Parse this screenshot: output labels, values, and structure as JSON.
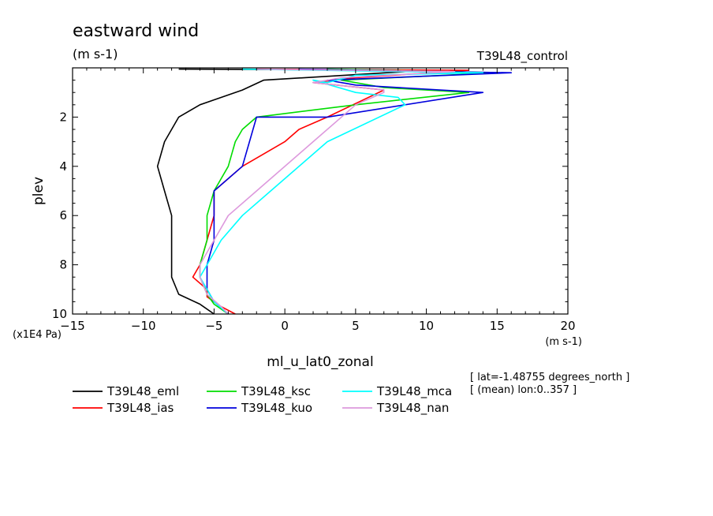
{
  "chart_data": {
    "type": "line",
    "title": "eastward wind",
    "units_top": "(m s-1)",
    "run_label": "T39L48_control",
    "xlabel": "ml_u_lat0_zonal",
    "x_units": "(m s-1)",
    "ylabel": "plev",
    "y_units": "(x1E4 Pa)",
    "xlim": [
      -15,
      20
    ],
    "ylim": [
      0,
      10
    ],
    "y_inverted": true,
    "x_ticks": [
      "-15",
      "-10",
      "-5",
      "0",
      "5",
      "10",
      "15",
      "20"
    ],
    "y_ticks": [
      "2",
      "4",
      "6",
      "8",
      "10"
    ],
    "info_lines": [
      "[ lat=-1.48755 degrees_north ]",
      "[ (mean) lon:0..357 ]"
    ],
    "series": [
      {
        "name": "T39L48_eml",
        "color": "#000000",
        "points": [
          [
            -7.5,
            0.05
          ],
          [
            10,
            0.1
          ],
          [
            -1.5,
            0.5
          ],
          [
            -3,
            0.9
          ],
          [
            -6,
            1.5
          ],
          [
            -7.5,
            2.0
          ],
          [
            -8.5,
            3.0
          ],
          [
            -9,
            4.0
          ],
          [
            -8.5,
            5.0
          ],
          [
            -8,
            6.0
          ],
          [
            -8,
            7.0
          ],
          [
            -8,
            8.0
          ],
          [
            -8,
            8.5
          ],
          [
            -7.5,
            9.2
          ],
          [
            -6,
            9.6
          ],
          [
            -5,
            10.0
          ]
        ]
      },
      {
        "name": "T39L48_ias",
        "color": "#ff0000",
        "points": [
          [
            -2,
            0.05
          ],
          [
            13,
            0.1
          ],
          [
            5,
            0.4
          ],
          [
            2,
            0.6
          ],
          [
            7,
            0.9
          ],
          [
            3,
            2.0
          ],
          [
            1,
            2.5
          ],
          [
            0,
            3.0
          ],
          [
            -3,
            4.0
          ],
          [
            -5,
            5.0
          ],
          [
            -5,
            6.0
          ],
          [
            -5.5,
            7.0
          ],
          [
            -6,
            8.0
          ],
          [
            -6.5,
            8.5
          ],
          [
            -5.5,
            9.0
          ],
          [
            -5.5,
            9.3
          ],
          [
            -4.5,
            9.7
          ],
          [
            -3.5,
            10.0
          ]
        ]
      },
      {
        "name": "T39L48_ksc",
        "color": "#00dd00",
        "points": [
          [
            3,
            0.05
          ],
          [
            15,
            0.2
          ],
          [
            4,
            0.5
          ],
          [
            7,
            0.8
          ],
          [
            13,
            1.0
          ],
          [
            5,
            1.5
          ],
          [
            -2,
            2.0
          ],
          [
            -3,
            2.5
          ],
          [
            -3.5,
            3.0
          ],
          [
            -4,
            4.0
          ],
          [
            -5,
            5.0
          ],
          [
            -5.5,
            6.0
          ],
          [
            -5.5,
            7.0
          ],
          [
            -6,
            8.0
          ],
          [
            -6,
            8.5
          ],
          [
            -5.5,
            9.2
          ],
          [
            -5,
            9.6
          ],
          [
            -4,
            10.0
          ]
        ]
      },
      {
        "name": "T39L48_kuo",
        "color": "#0000dd",
        "points": [
          [
            1,
            0.05
          ],
          [
            16,
            0.2
          ],
          [
            3,
            0.5
          ],
          [
            5,
            0.7
          ],
          [
            14,
            1.0
          ],
          [
            3,
            2.0
          ],
          [
            -2,
            2.0
          ],
          [
            -2.5,
            3.0
          ],
          [
            -3,
            4.0
          ],
          [
            -5,
            5.0
          ],
          [
            -5,
            6.0
          ],
          [
            -5,
            7.0
          ],
          [
            -5.5,
            8.0
          ],
          [
            -5.5,
            8.5
          ],
          [
            -5.5,
            9.0
          ],
          [
            -5,
            9.5
          ],
          [
            -4,
            10.0
          ]
        ]
      },
      {
        "name": "T39L48_mca",
        "color": "#00ffff",
        "points": [
          [
            -3,
            0.05
          ],
          [
            14,
            0.2
          ],
          [
            5,
            0.3
          ],
          [
            3,
            0.6
          ],
          [
            2,
            0.5
          ],
          [
            5,
            1.0
          ],
          [
            8,
            1.2
          ],
          [
            8.5,
            1.5
          ],
          [
            3,
            3.0
          ],
          [
            -1,
            5.0
          ],
          [
            -3,
            6.0
          ],
          [
            -4.5,
            7.0
          ],
          [
            -5.5,
            8.0
          ],
          [
            -6,
            8.5
          ],
          [
            -5,
            9.5
          ],
          [
            -4,
            10.0
          ]
        ]
      },
      {
        "name": "T39L48_nan",
        "color": "#dd99dd",
        "points": [
          [
            -2,
            0.05
          ],
          [
            12,
            0.15
          ],
          [
            4,
            0.4
          ],
          [
            2,
            0.6
          ],
          [
            7,
            0.9
          ],
          [
            7,
            1.0
          ],
          [
            5,
            1.5
          ],
          [
            2,
            3.0
          ],
          [
            -2,
            5.0
          ],
          [
            -4,
            6.0
          ],
          [
            -5,
            7.0
          ],
          [
            -6,
            8.0
          ],
          [
            -6,
            8.5
          ],
          [
            -5.5,
            9.2
          ],
          [
            -4.5,
            9.7
          ],
          [
            -4,
            10.0
          ]
        ]
      }
    ]
  }
}
